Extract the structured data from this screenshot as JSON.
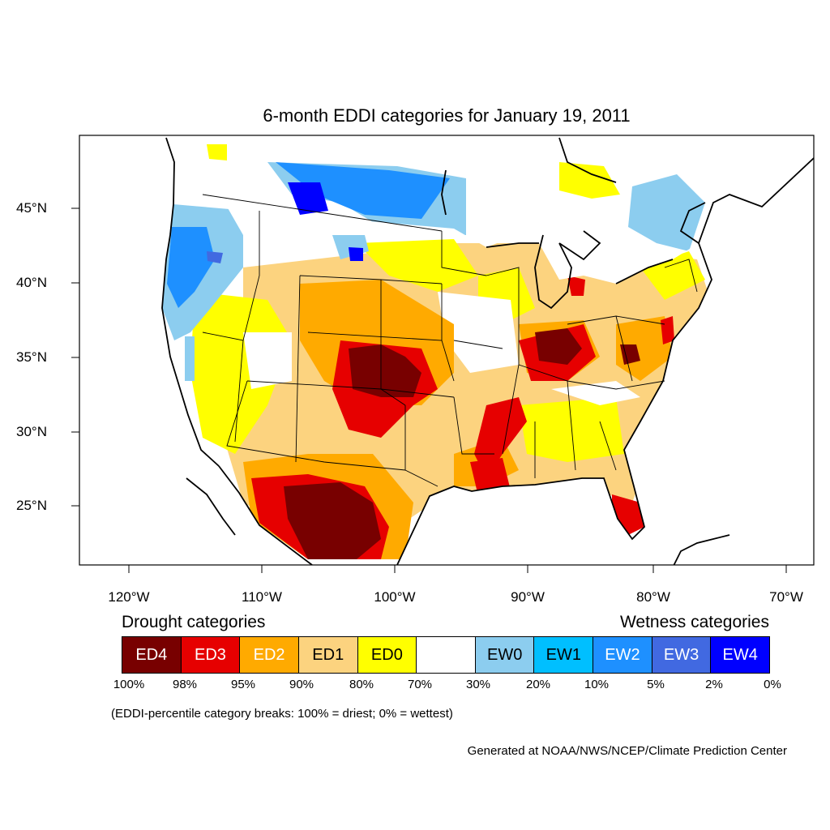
{
  "title": "6-month EDDI categories for January 19, 2011",
  "lon_ticks": [
    "120°W",
    "110°W",
    "100°W",
    "90°W",
    "80°W",
    "70°W"
  ],
  "lat_ticks": [
    "45°N",
    "40°N",
    "35°N",
    "30°N",
    "25°N"
  ],
  "legend": {
    "drought_heading": "Drought categories",
    "wetness_heading": "Wetness categories",
    "categories": [
      {
        "label": "ED4",
        "color": "#780000",
        "text_color": "#ffffff"
      },
      {
        "label": "ED3",
        "color": "#e60000",
        "text_color": "#ffffff"
      },
      {
        "label": "ED2",
        "color": "#ffaa00",
        "text_color": "#ffffff"
      },
      {
        "label": "ED1",
        "color": "#fcd37f",
        "text_color": "#000000"
      },
      {
        "label": "ED0",
        "color": "#ffff00",
        "text_color": "#000000"
      },
      {
        "label": "",
        "color": "#ffffff",
        "text_color": "#000000"
      },
      {
        "label": "EW0",
        "color": "#8ccdef",
        "text_color": "#000000"
      },
      {
        "label": "EW1",
        "color": "#00bfff",
        "text_color": "#000000"
      },
      {
        "label": "EW2",
        "color": "#1e90ff",
        "text_color": "#ffffff"
      },
      {
        "label": "EW3",
        "color": "#4169e1",
        "text_color": "#ffffff"
      },
      {
        "label": "EW4",
        "color": "#0000ff",
        "text_color": "#ffffff"
      }
    ],
    "breaks": [
      "100%",
      "98%",
      "95%",
      "90%",
      "80%",
      "70%",
      "30%",
      "20%",
      "10%",
      "5%",
      "2%",
      "0%"
    ]
  },
  "note": "(EDDI-percentile category breaks: 100% = driest; 0% = wettest)",
  "credit": "Generated at NOAA/NWS/NCEP/Climate Prediction Center"
}
